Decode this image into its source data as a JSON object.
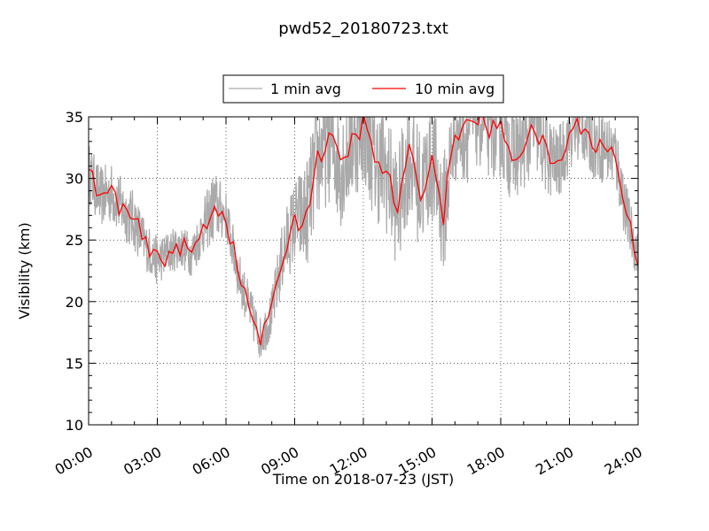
{
  "chart_data": {
    "type": "line",
    "title": "pwd52_20180723.txt",
    "xlabel": "Time on 2018-07-23 (JST)",
    "ylabel": "Visibility (km)",
    "x_ticks": [
      "00:00",
      "03:00",
      "06:00",
      "09:00",
      "12:00",
      "15:00",
      "18:00",
      "21:00",
      "24:00"
    ],
    "y_ticks": [
      "10",
      "15",
      "20",
      "25",
      "30",
      "35"
    ],
    "xlim_hours": [
      0,
      24
    ],
    "ylim": [
      10,
      35
    ],
    "grid": true,
    "legend_position": "top-center",
    "series": [
      {
        "name": "1 min avg",
        "color": "#aaaaaa",
        "resolution_min": 1,
        "hours": [
          0,
          0.5,
          1,
          1.5,
          2,
          2.5,
          3,
          3.5,
          4,
          4.5,
          5,
          5.5,
          6,
          6.5,
          7,
          7.5,
          8,
          8.5,
          9,
          9.5,
          10,
          10.5,
          11,
          11.5,
          12,
          12.5,
          13,
          13.5,
          14,
          14.5,
          15,
          15.5,
          16,
          16.5,
          17,
          17.5,
          18,
          18.5,
          19,
          19.5,
          20,
          20.5,
          21,
          21.5,
          22,
          22.5,
          23,
          23.5,
          24
        ],
        "values": [
          30.5,
          28.5,
          28.8,
          27.5,
          26.5,
          24.5,
          23.3,
          24.0,
          24.5,
          23.8,
          26.0,
          27.8,
          27.0,
          22.5,
          19.5,
          17.0,
          19.0,
          24.0,
          26.5,
          27.0,
          31.5,
          33.5,
          31.0,
          33.0,
          34.5,
          31.5,
          30.5,
          27.5,
          32.0,
          29.0,
          31.5,
          27.0,
          34.0,
          34.0,
          35.0,
          34.0,
          34.0,
          32.0,
          32.5,
          34.0,
          32.0,
          31.0,
          33.5,
          34.5,
          33.0,
          32.5,
          32.0,
          27.0,
          23.5
        ],
        "spread": [
          2.5,
          2.5,
          2.5,
          2.5,
          2.5,
          2.0,
          2.0,
          1.8,
          1.8,
          1.8,
          2.2,
          3.0,
          2.0,
          2.0,
          2.0,
          1.8,
          2.0,
          3.0,
          3.5,
          4.5,
          5.0,
          5.5,
          5.0,
          5.0,
          5.0,
          5.0,
          5.0,
          5.0,
          5.0,
          5.0,
          5.0,
          5.0,
          4.5,
          4.5,
          4.0,
          4.0,
          4.0,
          4.0,
          3.5,
          3.5,
          3.5,
          3.0,
          3.0,
          3.0,
          3.0,
          3.0,
          3.0,
          2.5,
          2.0
        ]
      },
      {
        "name": "10 min avg",
        "color": "#ff0000",
        "resolution_min": 10,
        "hours": [
          0,
          0.5,
          1,
          1.5,
          2,
          2.5,
          3,
          3.5,
          4,
          4.5,
          5,
          5.5,
          6,
          6.5,
          7,
          7.5,
          8,
          8.5,
          9,
          9.5,
          10,
          10.5,
          11,
          11.5,
          12,
          12.5,
          13,
          13.5,
          14,
          14.5,
          15,
          15.5,
          16,
          16.5,
          17,
          17.5,
          18,
          18.5,
          19,
          19.5,
          20,
          20.5,
          21,
          21.5,
          22,
          22.5,
          23,
          23.5,
          24
        ],
        "values": [
          30.5,
          28.5,
          28.8,
          27.5,
          26.5,
          24.5,
          23.3,
          24.0,
          24.5,
          23.8,
          26.0,
          27.8,
          27.0,
          22.5,
          19.5,
          17.0,
          19.0,
          24.0,
          26.5,
          27.0,
          31.5,
          33.5,
          31.0,
          33.0,
          34.5,
          31.5,
          30.5,
          27.5,
          32.0,
          29.0,
          31.5,
          27.0,
          34.0,
          34.0,
          35.0,
          34.0,
          34.0,
          32.0,
          32.5,
          34.0,
          32.0,
          31.0,
          33.5,
          34.5,
          33.0,
          32.5,
          32.0,
          27.0,
          23.5
        ]
      }
    ]
  }
}
